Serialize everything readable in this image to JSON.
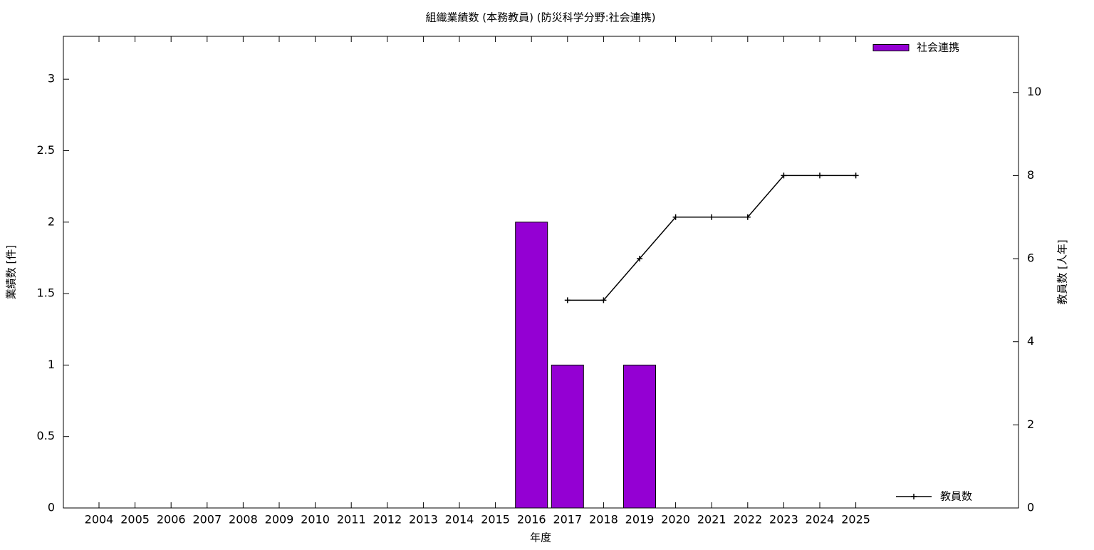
{
  "chart_data": {
    "type": "bar",
    "title": "組織業績数 (本務教員) (防災科学分野:社会連携)",
    "x_label": "年度",
    "y_label": "業績数 [件]",
    "y2_label": "教員数 [人年]",
    "categories": [
      "2004",
      "2005",
      "2006",
      "2007",
      "2008",
      "2009",
      "2010",
      "2011",
      "2012",
      "2013",
      "2014",
      "2015",
      "2016",
      "2017",
      "2018",
      "2019",
      "2020",
      "2021",
      "2022",
      "2023",
      "2024",
      "2025"
    ],
    "series": [
      {
        "name": "社会連携",
        "type": "bar",
        "color": "#9400d3",
        "legend": "top-right",
        "values": [
          0,
          0,
          0,
          0,
          0,
          0,
          0,
          0,
          0,
          0,
          0,
          0,
          2,
          1,
          0,
          1,
          0,
          0,
          0,
          0,
          0,
          0
        ]
      },
      {
        "name": "教員数",
        "type": "line",
        "color": "#000000",
        "axis": "y2",
        "legend": "bottom-right",
        "values": [
          null,
          null,
          null,
          null,
          null,
          null,
          null,
          null,
          null,
          null,
          null,
          null,
          null,
          5,
          5,
          6,
          7,
          7,
          7,
          8,
          8,
          8
        ]
      }
    ],
    "ylim": [
      0,
      3.3
    ],
    "yticks": [
      0,
      0.5,
      1,
      1.5,
      2,
      2.5,
      3
    ],
    "y2lim": [
      0,
      11.35
    ],
    "y2ticks": [
      0,
      2,
      4,
      6,
      8,
      10
    ]
  }
}
